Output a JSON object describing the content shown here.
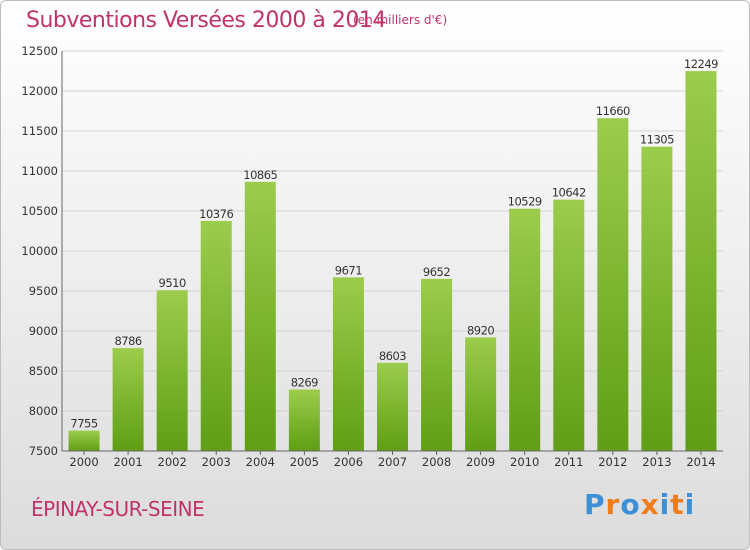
{
  "header": {
    "title": "Subventions Versées 2000 à 2014",
    "subtitle": "(en milliers d'€)"
  },
  "footer": {
    "city": "ÉPINAY-SUR-SEINE",
    "logo": "Proxiti"
  },
  "colors": {
    "accent": "#c0336a",
    "bar_top": "#9ccc4c",
    "bar_bottom": "#5f9e15",
    "logo_letters": [
      "#3d8fd6",
      "#f07d1a",
      "#3d8fd6",
      "#f07d1a",
      "#3d8fd6",
      "#f07d1a",
      "#3d8fd6"
    ]
  },
  "chart_data": {
    "type": "bar",
    "title": "Subventions Versées 2000 à 2014",
    "subtitle": "(en milliers d'€)",
    "xlabel": "",
    "ylabel": "",
    "categories": [
      "2000",
      "2001",
      "2002",
      "2003",
      "2004",
      "2005",
      "2006",
      "2007",
      "2008",
      "2009",
      "2010",
      "2011",
      "2012",
      "2013",
      "2014"
    ],
    "values": [
      7755,
      8786,
      9510,
      10376,
      10865,
      8269,
      9671,
      8603,
      9652,
      8920,
      10529,
      10642,
      11660,
      11305,
      12249
    ],
    "ylim": [
      7500,
      12500
    ],
    "yticks": [
      7500,
      8000,
      8500,
      9000,
      9500,
      10000,
      10500,
      11000,
      11500,
      12000,
      12500
    ],
    "grid": true,
    "legend": "none"
  }
}
